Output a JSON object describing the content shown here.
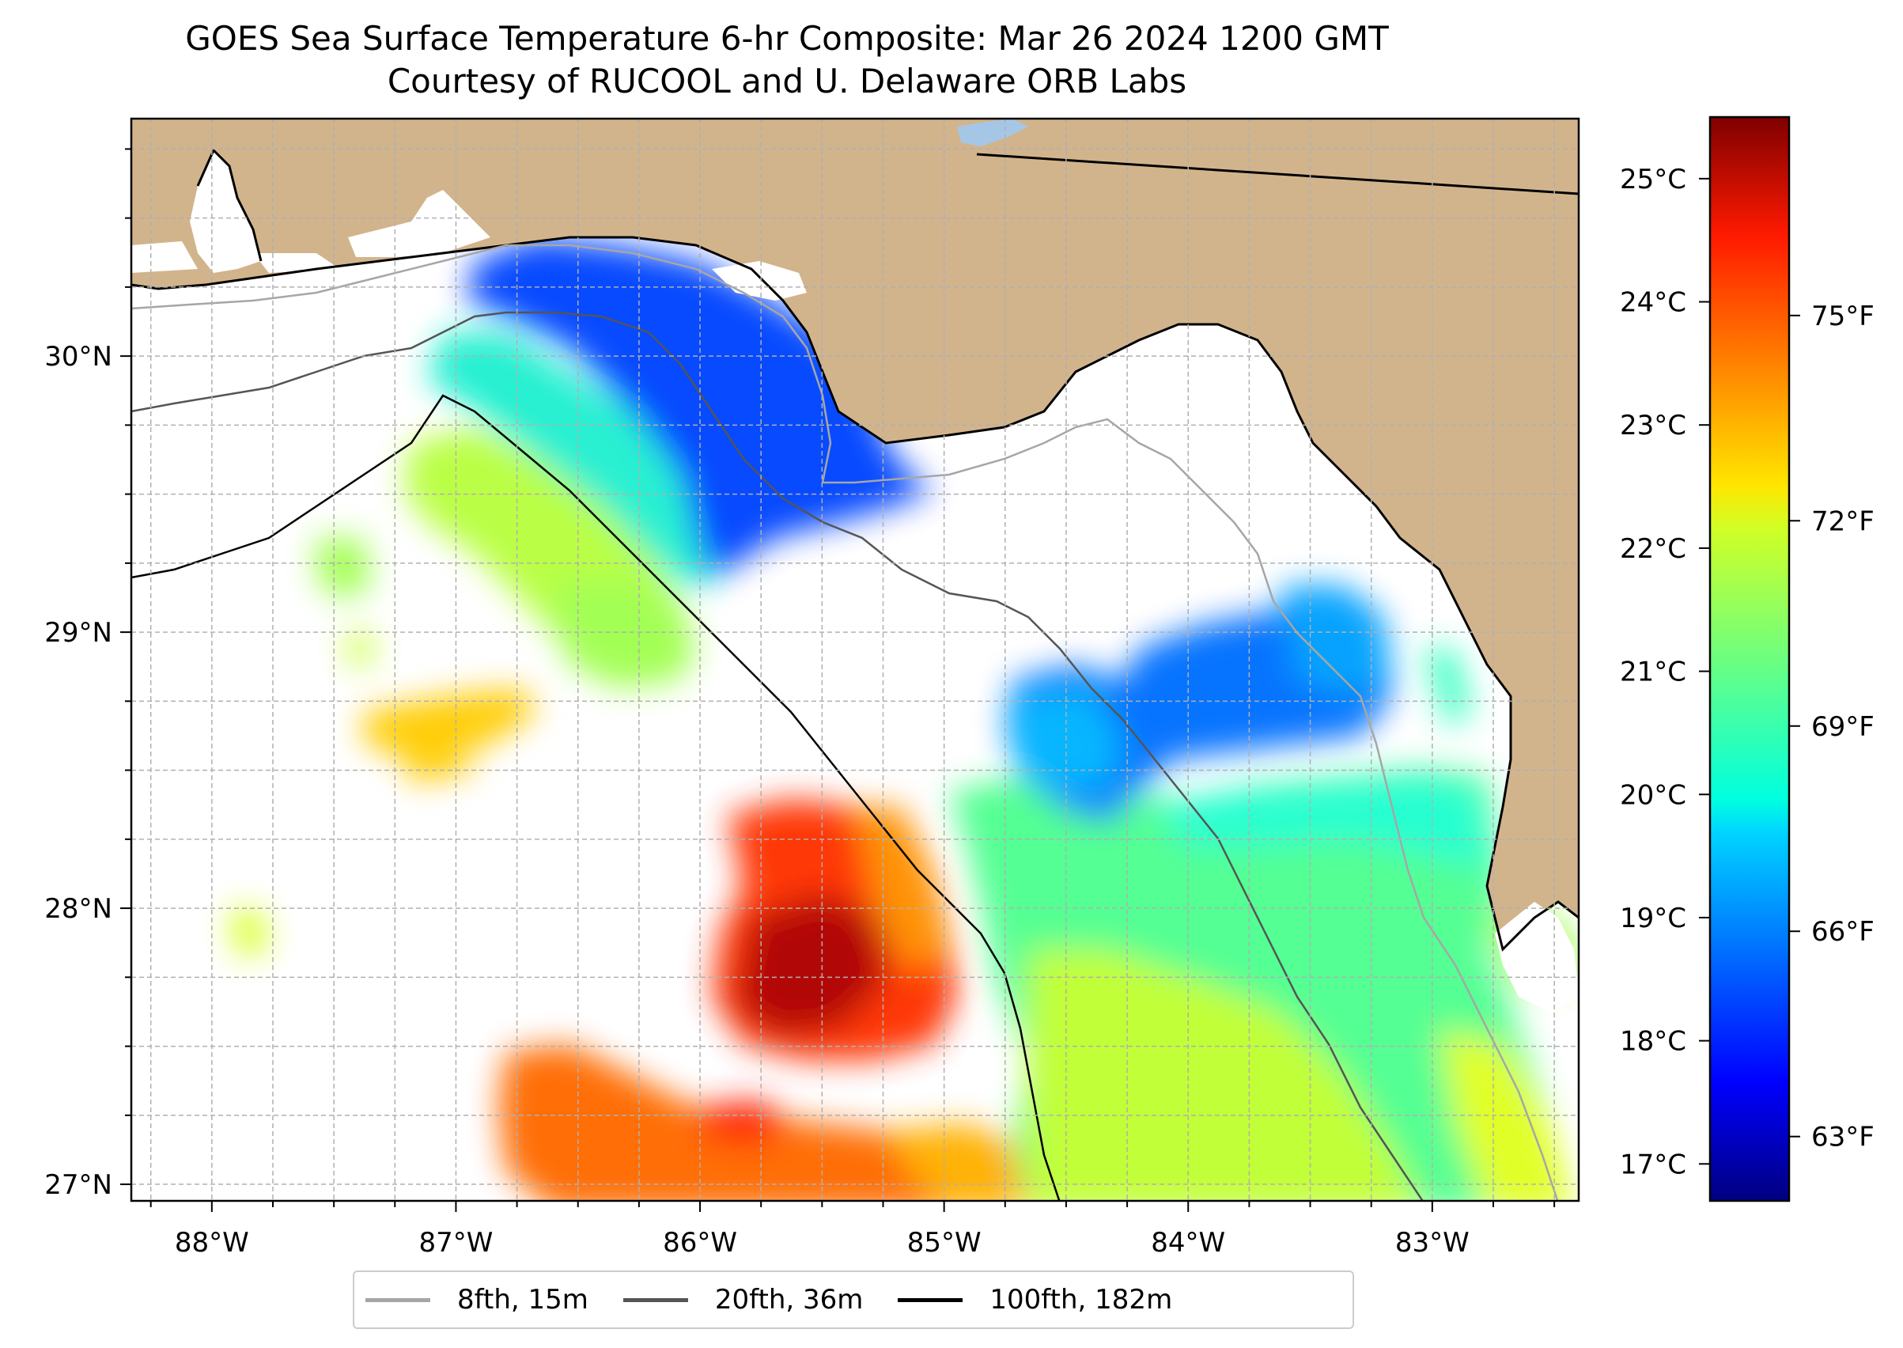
{
  "title": {
    "line1": "GOES Sea Surface Temperature 6-hr Composite: Mar 26 2024 1200 GMT",
    "line2": "Courtesy of RUCOOL and U. Delaware ORB Labs"
  },
  "map": {
    "lon_range": [
      -88.33,
      -82.4
    ],
    "lat_range": [
      26.94,
      30.86
    ],
    "lon_ticks": [
      {
        "value": -88,
        "label": "88°W"
      },
      {
        "value": -87,
        "label": "87°W"
      },
      {
        "value": -86,
        "label": "86°W"
      },
      {
        "value": -85,
        "label": "85°W"
      },
      {
        "value": -84,
        "label": "84°W"
      },
      {
        "value": -83,
        "label": "83°W"
      }
    ],
    "lat_ticks": [
      {
        "value": 27,
        "label": "27°N"
      },
      {
        "value": 28,
        "label": "28°N"
      },
      {
        "value": 29,
        "label": "29°N"
      },
      {
        "value": 30,
        "label": "30°N"
      }
    ],
    "colors": {
      "land": "#d2b48c",
      "coastline": "#000000",
      "gridline": "#b0b0b0",
      "isobath_8fth": "#a6a6a6",
      "isobath_20fth": "#555555",
      "isobath_100fth": "#000000"
    }
  },
  "colorbar": {
    "colormap": "jet",
    "celsius_range": [
      16.7,
      25.5
    ],
    "celsius_ticks": [
      {
        "value": 17,
        "label": "17°C"
      },
      {
        "value": 18,
        "label": "18°C"
      },
      {
        "value": 19,
        "label": "19°C"
      },
      {
        "value": 20,
        "label": "20°C"
      },
      {
        "value": 21,
        "label": "21°C"
      },
      {
        "value": 22,
        "label": "22°C"
      },
      {
        "value": 23,
        "label": "23°C"
      },
      {
        "value": 24,
        "label": "24°C"
      },
      {
        "value": 25,
        "label": "25°C"
      }
    ],
    "fahrenheit_ticks": [
      {
        "value": 63,
        "label": "63°F"
      },
      {
        "value": 66,
        "label": "66°F"
      },
      {
        "value": 69,
        "label": "69°F"
      },
      {
        "value": 72,
        "label": "72°F"
      },
      {
        "value": 75,
        "label": "75°F"
      }
    ]
  },
  "legend": {
    "items": [
      {
        "label": "8fth, 15m",
        "color": "#a6a6a6"
      },
      {
        "label": "20fth, 36m",
        "color": "#555555"
      },
      {
        "label": "100fth, 182m",
        "color": "#000000"
      }
    ]
  }
}
